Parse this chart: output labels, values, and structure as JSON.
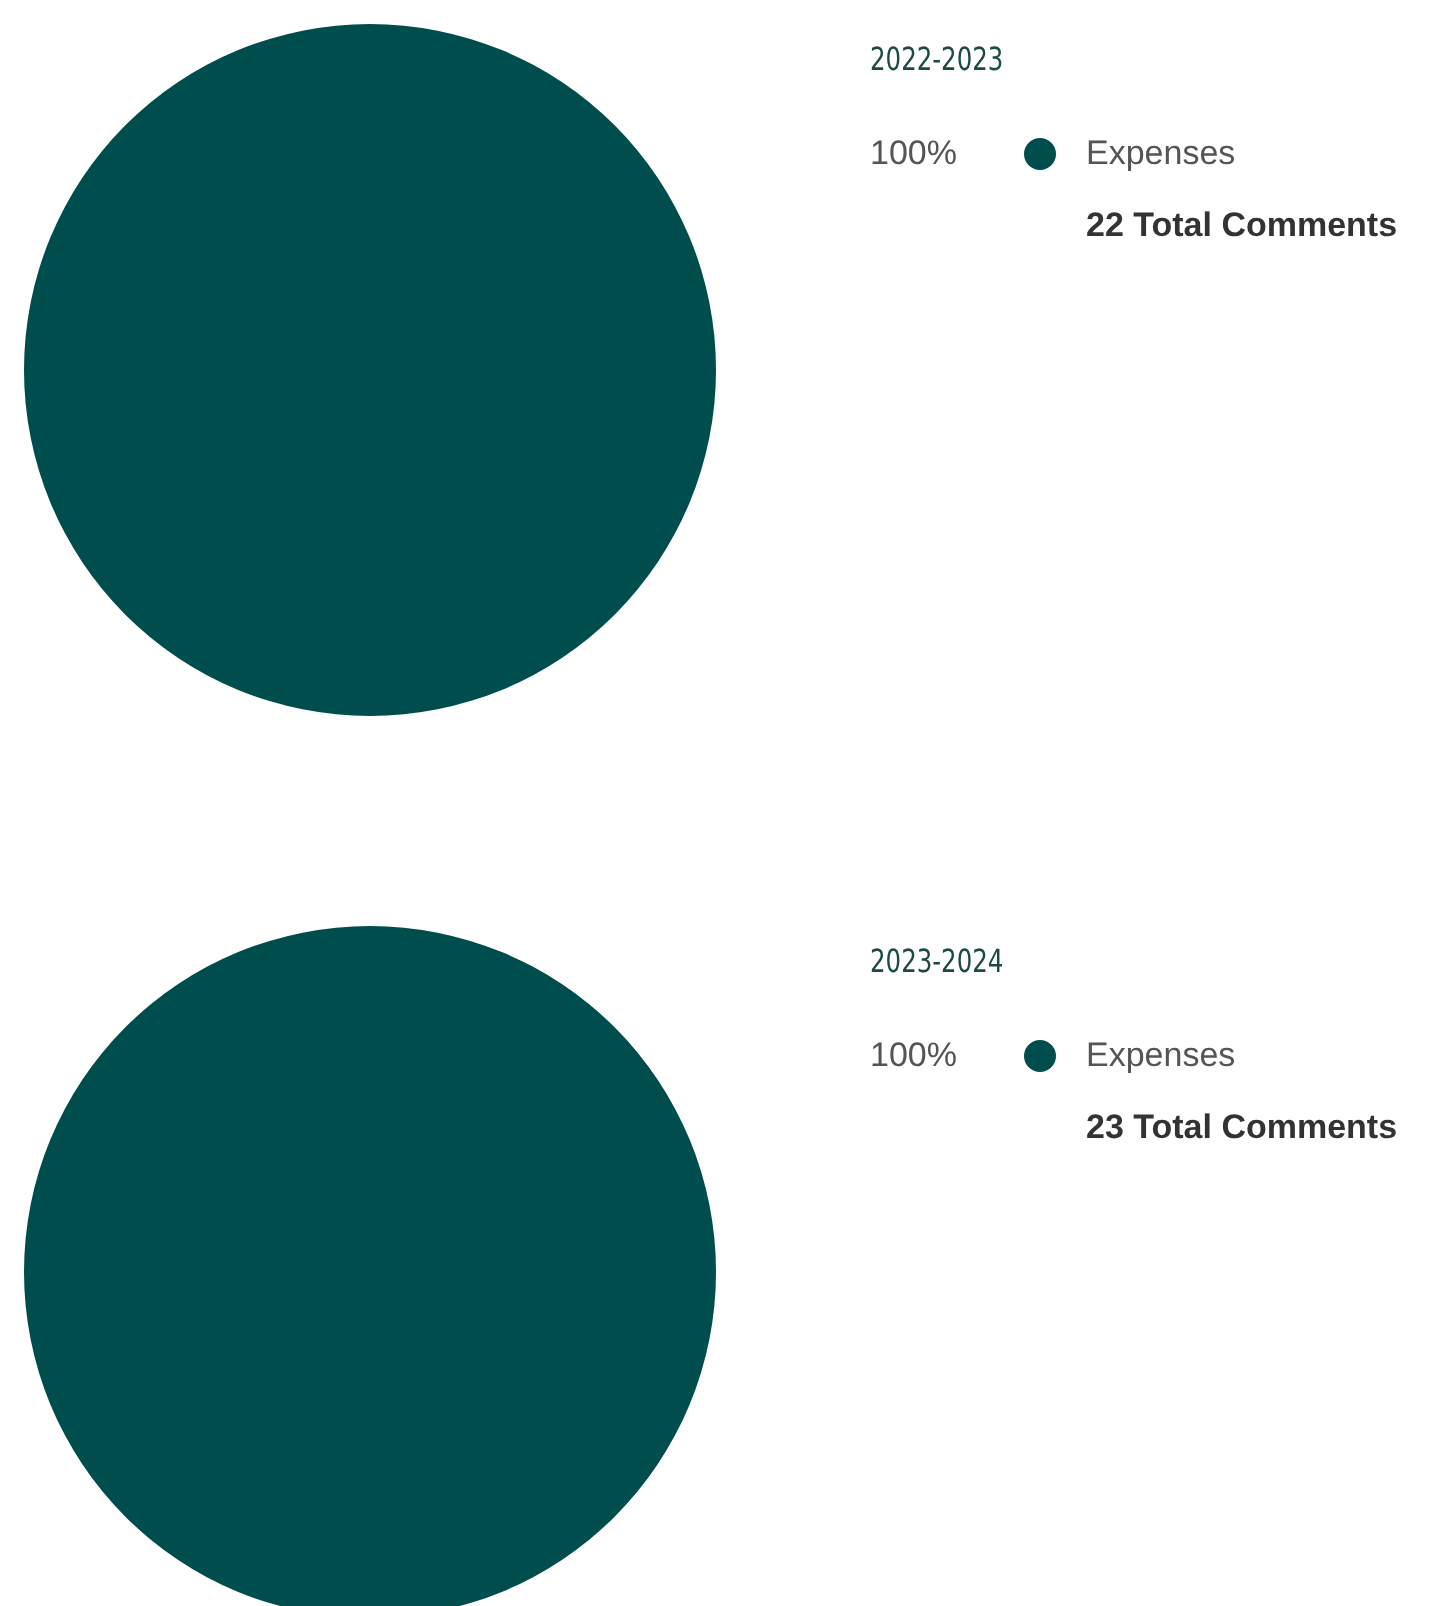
{
  "chart_data": [
    {
      "type": "pie",
      "title": "2022-2023",
      "categories": [
        "Expenses"
      ],
      "values": [
        100
      ],
      "colors": [
        "#004d4d"
      ],
      "value_labels": [
        "100%"
      ],
      "legend": "right",
      "annotations": [
        "22 Total Comments"
      ]
    },
    {
      "type": "pie",
      "title": "2023-2024",
      "categories": [
        "Expenses"
      ],
      "values": [
        100
      ],
      "colors": [
        "#004d4d"
      ],
      "value_labels": [
        "100%"
      ],
      "legend": "right",
      "annotations": [
        "23 Total Comments"
      ]
    }
  ]
}
